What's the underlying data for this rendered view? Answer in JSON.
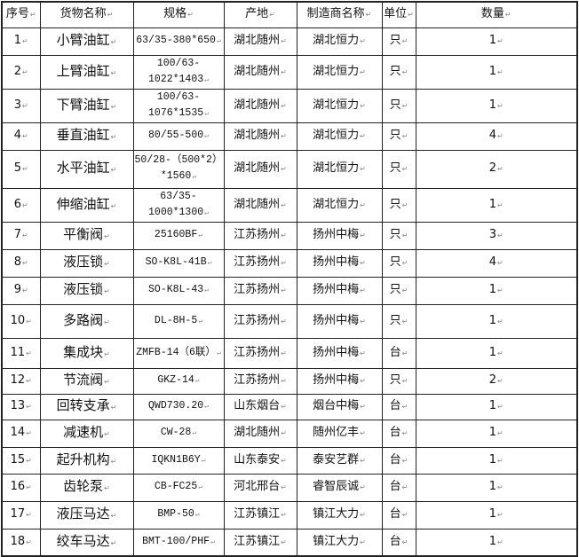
{
  "table": {
    "headers": [
      "序号",
      "货物名称",
      "规格",
      "产地",
      "制造商名称",
      "单位",
      "数量"
    ],
    "rows": [
      [
        "1",
        "小臂油缸",
        "63/35-380*650",
        "湖北随州",
        "湖北恒力",
        "只",
        "1"
      ],
      [
        "2",
        "上臂油缸",
        "100/63-1022*1403",
        "湖北随州",
        "湖北恒力",
        "只",
        "1"
      ],
      [
        "3",
        "下臂油缸",
        "100/63-1076*1535",
        "湖北随州",
        "湖北恒力",
        "只",
        "1"
      ],
      [
        "4",
        "垂直油缸",
        "80/55-500",
        "湖北随州",
        "湖北恒力",
        "只",
        "4"
      ],
      [
        "5",
        "水平油缸",
        "50/28-（500*2）*1560",
        "湖北随州",
        "湖北恒力",
        "只",
        "2"
      ],
      [
        "6",
        "伸缩油缸",
        "63/35-1000*1300",
        "湖北随州",
        "湖北恒力",
        "只",
        "1"
      ],
      [
        "7",
        "平衡阀",
        "25160BF",
        "江苏扬州",
        "扬州中梅",
        "只",
        "3"
      ],
      [
        "8",
        "液压锁",
        "SO-K8L-41B",
        "江苏扬州",
        "扬州中梅",
        "只",
        "4"
      ],
      [
        "9",
        "液压锁",
        "SO-K8L-43",
        "江苏扬州",
        "扬州中梅",
        "只",
        "1"
      ],
      [
        "10",
        "多路阀",
        "DL-8H-5",
        "江苏扬州",
        "扬州中梅",
        "只",
        "1"
      ],
      [
        "11",
        "集成块",
        "ZMFB-14（6联）",
        "江苏扬州",
        "扬州中梅",
        "台",
        "1"
      ],
      [
        "12",
        "节流阀",
        "GKZ-14",
        "江苏扬州",
        "扬州中梅",
        "只",
        "2"
      ],
      [
        "13",
        "回转支承",
        "QWD730.20",
        "山东烟台",
        "烟台中梅",
        "台",
        "1"
      ],
      [
        "14",
        "减速机",
        "CW-28",
        "湖北随州",
        "随州亿丰",
        "台",
        "1"
      ],
      [
        "15",
        "起升机构",
        "IQKN1B6Y",
        "山东泰安",
        "泰安艺群",
        "台",
        "1"
      ],
      [
        "16",
        "齿轮泵",
        "CB-FC25",
        "河北邢台",
        "睿智辰诚",
        "台",
        "1"
      ],
      [
        "17",
        "液压马达",
        "BMP-50",
        "江苏镇江",
        "镇江大力",
        "台",
        "1"
      ],
      [
        "18",
        "绞车马达",
        "BMT-100/PHF",
        "江苏镇江",
        "镇江大力",
        "台",
        "1"
      ]
    ]
  }
}
